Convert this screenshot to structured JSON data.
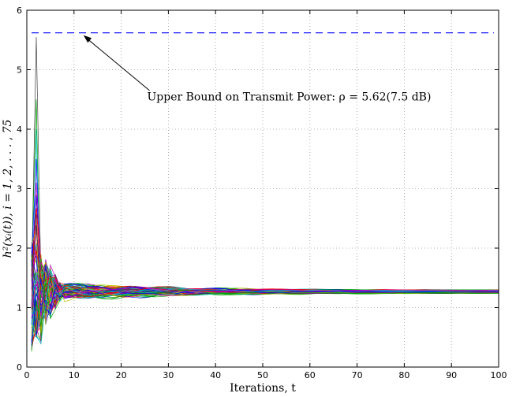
{
  "chart_data": {
    "type": "line",
    "title": "",
    "xlabel": "Iterations, t",
    "ylabel": "h²(xᵢ(t)), i = 1, 2, . . . , 75",
    "xlim": [
      0,
      100
    ],
    "ylim": [
      0,
      6
    ],
    "xticks": [
      "0",
      "10",
      "20",
      "30",
      "40",
      "50",
      "60",
      "70",
      "80",
      "90",
      "100"
    ],
    "yticks": [
      "0",
      "1",
      "2",
      "3",
      "4",
      "5",
      "6"
    ],
    "grid": true,
    "num_series": 75,
    "converged_value": 1.27,
    "upper_bound": {
      "value": 5.62,
      "color": "#0000ff",
      "style": "dashed"
    },
    "annotation": {
      "text": "Upper Bound on Transmit Power: ρ = 5.62(7.5 dB)",
      "arrow_x": 12,
      "arrow_y": 5.62
    },
    "series_peaks_example": [
      {
        "x": 2,
        "y": 5.55,
        "color": "#404040"
      },
      {
        "x": 2,
        "y": 4.5,
        "color": "#00a000"
      },
      {
        "x": 2,
        "y": 4.0,
        "color": "#00c0c0"
      },
      {
        "x": 2,
        "y": 3.5,
        "color": "#0000ff"
      },
      {
        "x": 2,
        "y": 3.1,
        "color": "#c000c0"
      },
      {
        "x": 2,
        "y": 2.9,
        "color": "#ff0000"
      }
    ],
    "palette": [
      "#ff0000",
      "#00a000",
      "#0000ff",
      "#00bfbf",
      "#bf00bf",
      "#bfbf00",
      "#404040"
    ]
  }
}
